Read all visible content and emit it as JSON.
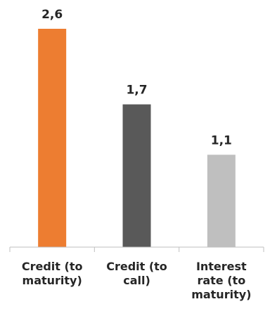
{
  "chart_data": {
    "type": "bar",
    "title": "",
    "xlabel": "",
    "ylabel": "",
    "categories": [
      [
        "Credit (to",
        "maturity)"
      ],
      [
        "Credit (to",
        "call)"
      ],
      [
        "Interest",
        "rate (to",
        "maturity)"
      ]
    ],
    "values": [
      2.6,
      1.7,
      1.1
    ],
    "value_labels": [
      "2,6",
      "1,7",
      "1,1"
    ],
    "colors": [
      "#ED7D31",
      "#595959",
      "#BFBFBF"
    ],
    "ylim": [
      0,
      2.6
    ],
    "grid": false,
    "legend": "none"
  }
}
